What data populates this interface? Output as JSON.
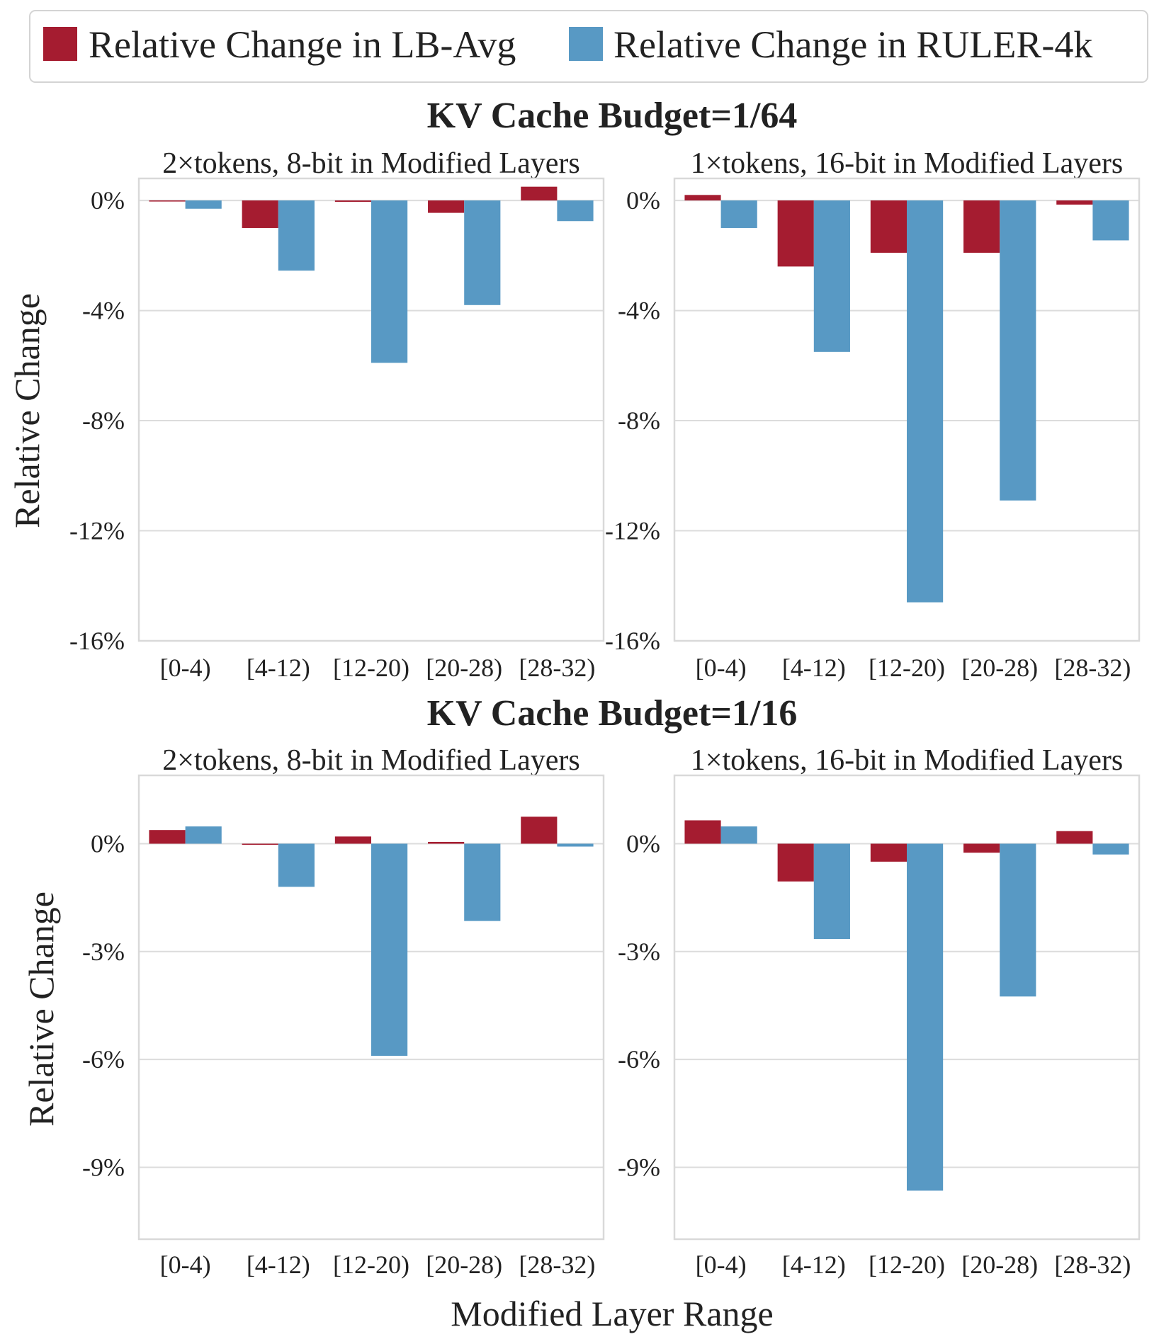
{
  "legend": {
    "items": [
      {
        "label": "Relative Change in LB-Avg",
        "color": "#a51c30"
      },
      {
        "label": "Relative Change in RULER-4k",
        "color": "#5899c4"
      }
    ]
  },
  "xlabel": "Modified Layer Range",
  "ylabel": "Relative Change",
  "sections": [
    {
      "title": "KV Cache Budget=1/64"
    },
    {
      "title": "KV Cache Budget=1/16"
    }
  ],
  "chart_data": [
    {
      "type": "bar",
      "section": "KV Cache Budget=1/64",
      "title": "2×tokens, 8-bit in Modified Layers",
      "categories": [
        "[0-4)",
        "[4-12)",
        "[12-20)",
        "[20-28)",
        "[28-32)"
      ],
      "series": [
        {
          "name": "Relative Change in LB-Avg",
          "values": [
            0.0,
            -1.0,
            -0.05,
            -0.45,
            0.5
          ]
        },
        {
          "name": "Relative Change in RULER-4k",
          "values": [
            -0.3,
            -2.55,
            -5.9,
            -3.8,
            -0.75
          ]
        }
      ],
      "ylim": [
        -16,
        0.8
      ],
      "yticks": [
        0,
        -4,
        -8,
        -12,
        -16
      ],
      "ytick_labels": [
        "0%",
        "-4%",
        "-8%",
        "-12%",
        "-16%"
      ],
      "ylabel": "Relative Change"
    },
    {
      "type": "bar",
      "section": "KV Cache Budget=1/64",
      "title": "1×tokens, 16-bit in Modified Layers",
      "categories": [
        "[0-4)",
        "[4-12)",
        "[12-20)",
        "[20-28)",
        "[28-32)"
      ],
      "series": [
        {
          "name": "Relative Change in LB-Avg",
          "values": [
            0.2,
            -2.4,
            -1.9,
            -1.9,
            -0.15
          ]
        },
        {
          "name": "Relative Change in RULER-4k",
          "values": [
            -1.0,
            -5.5,
            -14.6,
            -10.9,
            -1.45
          ]
        }
      ],
      "ylim": [
        -16,
        0.8
      ],
      "yticks": [
        0,
        -4,
        -8,
        -12,
        -16
      ],
      "ytick_labels": [
        "0%",
        "-4%",
        "-8%",
        "-12%",
        "-16%"
      ]
    },
    {
      "type": "bar",
      "section": "KV Cache Budget=1/16",
      "title": "2×tokens, 8-bit in Modified Layers",
      "categories": [
        "[0-4)",
        "[4-12)",
        "[12-20)",
        "[20-28)",
        "[28-32)"
      ],
      "series": [
        {
          "name": "Relative Change in LB-Avg",
          "values": [
            0.38,
            0.0,
            0.2,
            0.05,
            0.75
          ]
        },
        {
          "name": "Relative Change in RULER-4k",
          "values": [
            0.48,
            -1.2,
            -5.9,
            -2.15,
            -0.08
          ]
        }
      ],
      "ylim": [
        -11,
        1.9
      ],
      "yticks": [
        0,
        -3,
        -6,
        -9
      ],
      "ytick_labels": [
        "0%",
        "-3%",
        "-6%",
        "-9%"
      ],
      "ylabel": "Relative Change",
      "xlabel": "Modified Layer Range"
    },
    {
      "type": "bar",
      "section": "KV Cache Budget=1/16",
      "title": "1×tokens, 16-bit in Modified Layers",
      "categories": [
        "[0-4)",
        "[4-12)",
        "[12-20)",
        "[20-28)",
        "[28-32)"
      ],
      "series": [
        {
          "name": "Relative Change in LB-Avg",
          "values": [
            0.65,
            -1.05,
            -0.5,
            -0.25,
            0.35
          ]
        },
        {
          "name": "Relative Change in RULER-4k",
          "values": [
            0.48,
            -2.65,
            -9.65,
            -4.25,
            -0.3
          ]
        }
      ],
      "ylim": [
        -11,
        1.9
      ],
      "yticks": [
        0,
        -3,
        -6,
        -9
      ],
      "ytick_labels": [
        "0%",
        "-3%",
        "-6%",
        "-9%"
      ],
      "xlabel": "Modified Layer Range"
    }
  ]
}
